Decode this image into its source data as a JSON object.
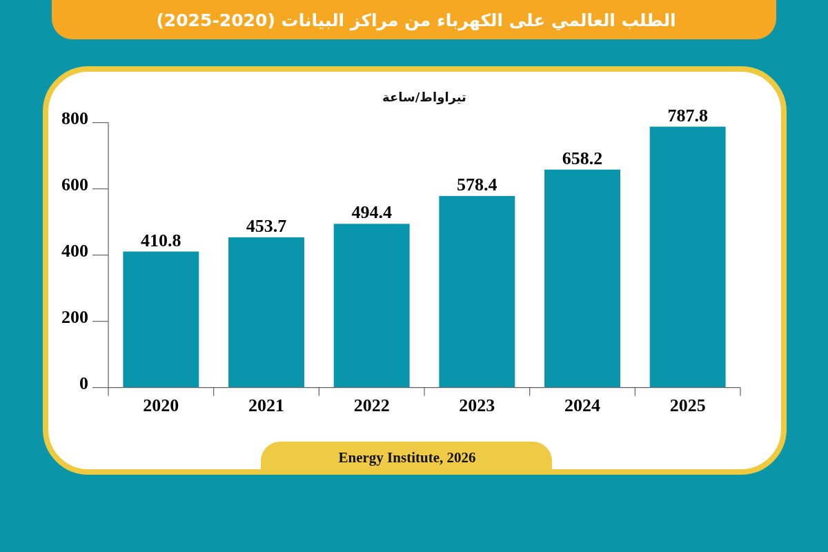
{
  "chart_data": {
    "type": "bar",
    "title": "الطلب العالمي على الكهرباء من مراكز البيانات (2020-2025)",
    "ylabel": "تيراواط/ساعة",
    "categories": [
      "2020",
      "2021",
      "2022",
      "2023",
      "2024",
      "2025"
    ],
    "values": [
      410.8,
      453.7,
      494.4,
      578.4,
      658.2,
      787.8
    ],
    "color": "#0995ab",
    "ylim": [
      0,
      800
    ],
    "yticks": [
      0,
      200,
      400,
      600,
      800
    ],
    "data_labels": true,
    "annotations": [
      "Energy Institute, 2026"
    ]
  }
}
